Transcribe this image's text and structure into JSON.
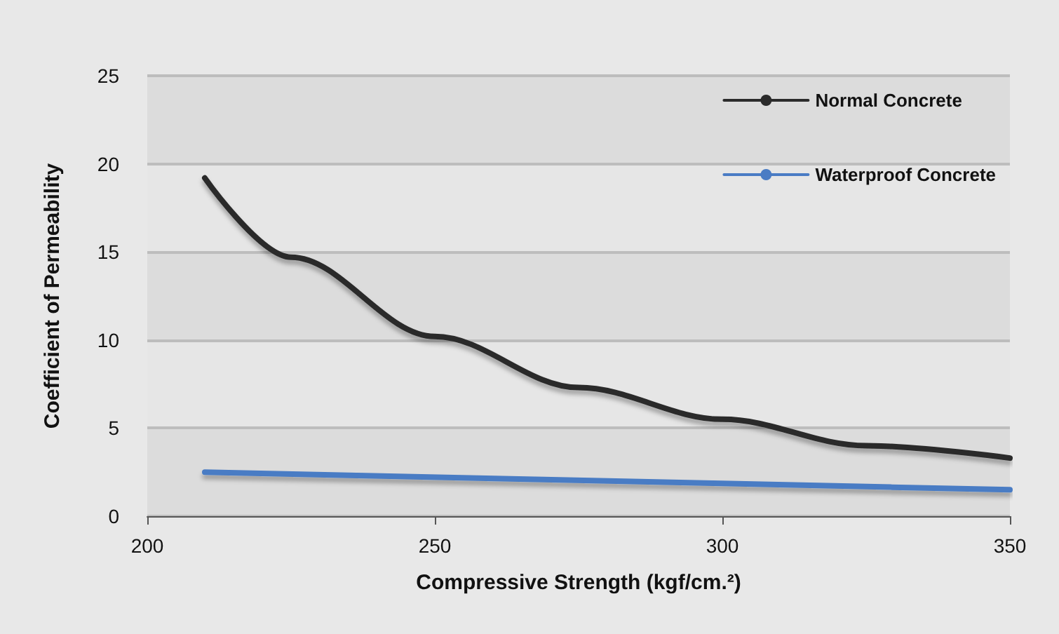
{
  "chart_data": {
    "type": "line",
    "xlabel": "Compressive Strength (kgf/cm.²)",
    "ylabel": "Coefficient of Permeability",
    "xlim": [
      200,
      350
    ],
    "xticks": [
      200,
      250,
      300,
      350
    ],
    "ylim": [
      0,
      25
    ],
    "yticks": [
      0,
      5,
      10,
      15,
      20,
      25
    ],
    "grid": "y",
    "legend": "top right",
    "marker": "none",
    "line_style": "solid",
    "series": [
      {
        "name": "Normal Concrete",
        "color": "#2b2b2b",
        "x": [
          210,
          225,
          250,
          275,
          300,
          325,
          350
        ],
        "values": [
          19.2,
          14.7,
          10.2,
          7.3,
          5.5,
          4.0,
          3.3
        ]
      },
      {
        "name": "Waterproof Concrete",
        "color": "#4a7cc4",
        "x": [
          210,
          350
        ],
        "values": [
          2.5,
          1.5
        ]
      }
    ]
  }
}
